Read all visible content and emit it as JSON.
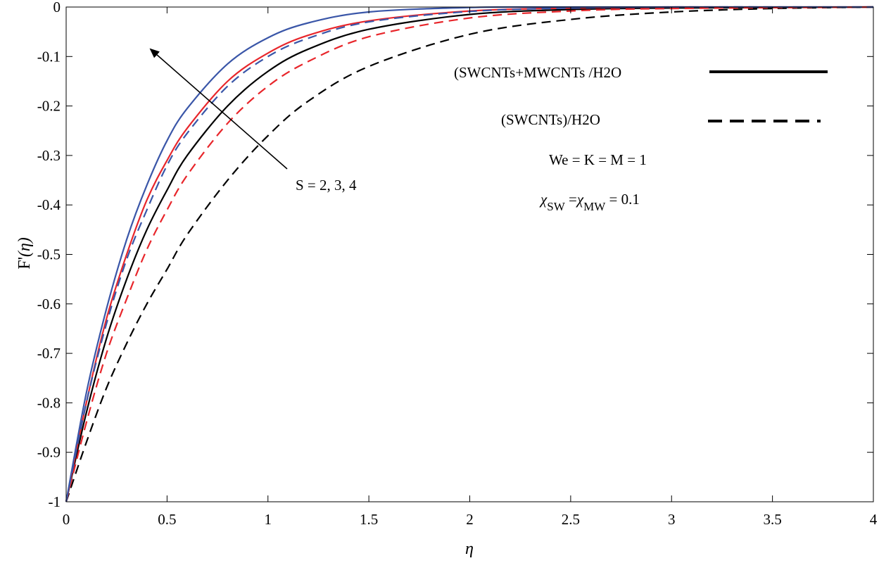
{
  "chart_data": {
    "type": "line",
    "xlabel": "η",
    "ylabel_main": "F",
    "ylabel_prime": "'",
    "ylabel_arg": "(η)",
    "xlim": [
      0,
      4
    ],
    "ylim": [
      -1,
      0
    ],
    "x_ticks": [
      "0",
      "0.5",
      "1",
      "1.5",
      "2",
      "2.5",
      "3",
      "3.5",
      "4"
    ],
    "y_ticks": [
      "0",
      "-0.1",
      "-0.2",
      "-0.3",
      "-0.4",
      "-0.5",
      "-0.6",
      "-0.7",
      "-0.8",
      "-0.9",
      "-1"
    ],
    "grid": false,
    "legend_position": "top-right",
    "legend": [
      {
        "label": "(SWCNTs+MWCNTs /H2O",
        "style": "solid"
      },
      {
        "label": "(SWCNTs)/H2O",
        "style": "dashed"
      }
    ],
    "annotations": {
      "arrow_label": "S = 2, 3, 4",
      "params_line": "We = K = M = 1",
      "chi_symbol": "χ",
      "chi_sw_sub": "SW",
      "chi_equals": " =",
      "chi_mw_sub": "MW",
      "chi_value": " = 0.1"
    },
    "series": [
      {
        "style": "solid",
        "color": "#000000",
        "S": 2,
        "x": [
          0,
          0.1,
          0.2,
          0.3,
          0.4,
          0.5,
          0.6,
          0.8,
          1.0,
          1.2,
          1.5,
          2.0,
          2.5,
          3.0,
          4.0
        ],
        "y": [
          -1,
          -0.82,
          -0.67,
          -0.55,
          -0.45,
          -0.37,
          -0.3,
          -0.2,
          -0.13,
          -0.085,
          -0.045,
          -0.015,
          -0.005,
          -0.002,
          0
        ]
      },
      {
        "style": "solid",
        "color": "#e8262b",
        "S": 3,
        "x": [
          0,
          0.1,
          0.2,
          0.3,
          0.4,
          0.5,
          0.6,
          0.8,
          1.0,
          1.2,
          1.5,
          2.0,
          2.5,
          3.0,
          4.0
        ],
        "y": [
          -1,
          -0.8,
          -0.63,
          -0.5,
          -0.39,
          -0.31,
          -0.245,
          -0.15,
          -0.093,
          -0.057,
          -0.028,
          -0.008,
          -0.002,
          0,
          0
        ]
      },
      {
        "style": "solid",
        "color": "#3a56a8",
        "S": 4,
        "x": [
          0,
          0.1,
          0.2,
          0.3,
          0.4,
          0.5,
          0.6,
          0.8,
          1.0,
          1.2,
          1.5,
          2.0,
          2.5,
          4.0
        ],
        "y": [
          -1,
          -0.78,
          -0.61,
          -0.47,
          -0.36,
          -0.27,
          -0.205,
          -0.115,
          -0.062,
          -0.032,
          -0.01,
          -0.001,
          0,
          0
        ]
      },
      {
        "style": "dashed",
        "color": "#000000",
        "S": 2,
        "x": [
          0,
          0.1,
          0.2,
          0.3,
          0.4,
          0.5,
          0.6,
          0.8,
          1.0,
          1.2,
          1.5,
          2.0,
          2.5,
          3.0,
          3.5,
          4.0
        ],
        "y": [
          -1,
          -0.88,
          -0.77,
          -0.68,
          -0.6,
          -0.53,
          -0.46,
          -0.35,
          -0.26,
          -0.19,
          -0.12,
          -0.055,
          -0.025,
          -0.01,
          -0.003,
          0
        ]
      },
      {
        "style": "dashed",
        "color": "#e8262b",
        "S": 3,
        "x": [
          0,
          0.1,
          0.2,
          0.3,
          0.4,
          0.5,
          0.6,
          0.8,
          1.0,
          1.2,
          1.5,
          2.0,
          2.5,
          3.0,
          4.0
        ],
        "y": [
          -1,
          -0.84,
          -0.7,
          -0.59,
          -0.49,
          -0.41,
          -0.34,
          -0.235,
          -0.16,
          -0.11,
          -0.06,
          -0.022,
          -0.008,
          -0.003,
          0
        ]
      },
      {
        "style": "dashed",
        "color": "#3a56a8",
        "S": 4,
        "x": [
          0,
          0.1,
          0.2,
          0.3,
          0.4,
          0.5,
          0.6,
          0.8,
          1.0,
          1.2,
          1.5,
          2.0,
          2.5,
          3.0,
          4.0
        ],
        "y": [
          -1,
          -0.8,
          -0.64,
          -0.51,
          -0.41,
          -0.32,
          -0.255,
          -0.16,
          -0.1,
          -0.063,
          -0.03,
          -0.009,
          -0.002,
          0,
          0
        ]
      }
    ]
  }
}
